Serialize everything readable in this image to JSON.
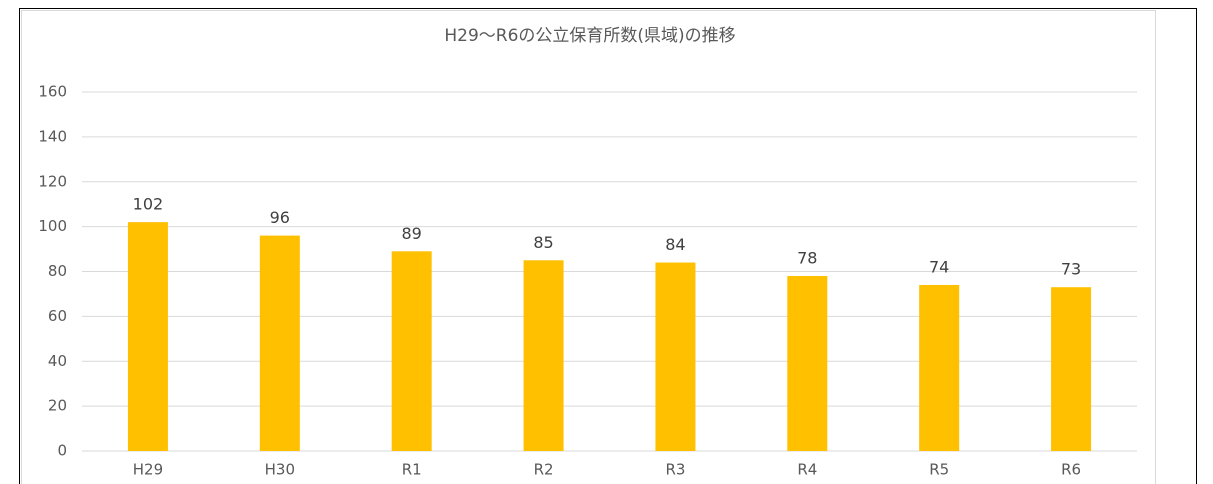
{
  "chart_data": {
    "type": "bar",
    "title": "H29〜R6の公立保育所数(県域)の推移",
    "categories": [
      "H29",
      "H30",
      "R1",
      "R2",
      "R3",
      "R4",
      "R5",
      "R6"
    ],
    "values": [
      102,
      96,
      89,
      85,
      84,
      78,
      74,
      73
    ],
    "color": "#ffc000",
    "ylim": [
      0,
      160
    ],
    "yticks": [
      0,
      20,
      40,
      60,
      80,
      100,
      120,
      140,
      160
    ],
    "grid": true,
    "data_labels": true
  }
}
